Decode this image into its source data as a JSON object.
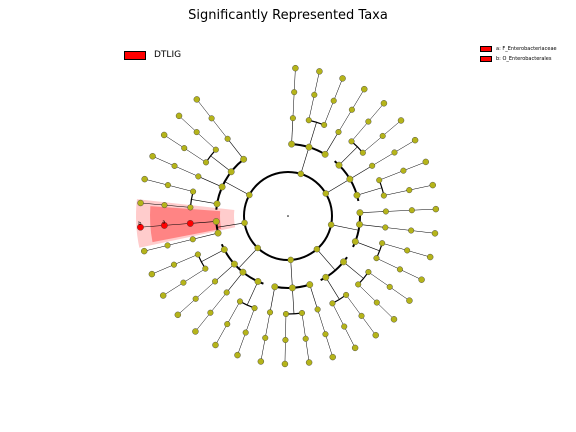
{
  "chart_data": {
    "type": "cladogram",
    "title": "Significantly Represented Taxa",
    "group_legend": [
      {
        "label": "DTLIG",
        "color": "#ff0000"
      }
    ],
    "clade_legend": [
      {
        "label": "a: F_Enterobacteriaceae",
        "color": "#ff0000"
      },
      {
        "label": "b: O_Enterobacterales",
        "color": "#ff0000"
      }
    ],
    "clade_markers": [
      "a",
      "b"
    ],
    "node_color": "#b5b41a",
    "highlight_color": "#ff0000",
    "depth_levels": 6,
    "phylum_groups": [
      {
        "classes": [
          1,
          2,
          1
        ]
      },
      {
        "classes": [
          2,
          1,
          2
        ]
      },
      {
        "classes": [
          1,
          1,
          2
        ]
      },
      {
        "classes": [
          2,
          2
        ]
      },
      {
        "classes": [
          1,
          2,
          1
        ]
      },
      {
        "classes": [
          2,
          1,
          1,
          2
        ]
      },
      {
        "classes": [
          1,
          1
        ]
      },
      {
        "classes": [
          2,
          1,
          2,
          1
        ]
      }
    ],
    "highlighted_lineage_depth": 5
  }
}
